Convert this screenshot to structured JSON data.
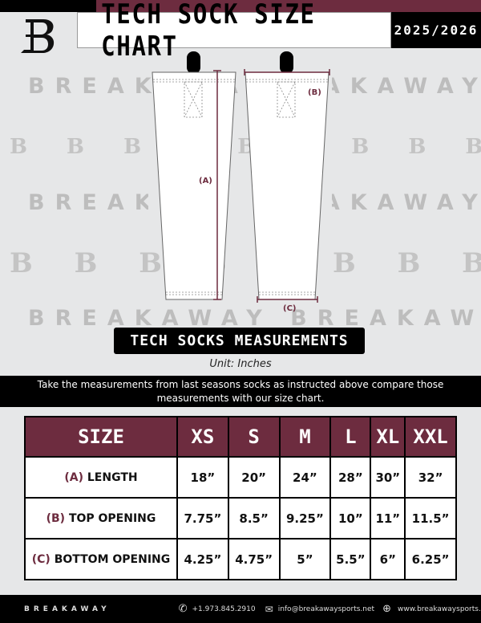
{
  "header": {
    "title": "TECH SOCK SIZE CHART",
    "season": "2025/2026",
    "brand_logo": "B"
  },
  "watermark": {
    "text": "BREAKAWAY",
    "logo": "B"
  },
  "diagram": {
    "label_a": "(A)",
    "label_b": "(B)",
    "label_c": "(C)"
  },
  "colors": {
    "maroon": "#6d2c3f",
    "black": "#000000",
    "background": "#e6e7e8"
  },
  "section_title": "TECH SOCKS MEASUREMENTS",
  "unit": "Unit: Inches",
  "instructions_line1": "Take the measurements from last seasons socks as instructed above compare those",
  "instructions_line2": "measurements  with our size chart.",
  "table": {
    "header": [
      "SIZE",
      "XS",
      "S",
      "M",
      "L",
      "XL",
      "XXL"
    ],
    "rows": [
      {
        "code": "(A)",
        "label": "LENGTH",
        "values": [
          "18”",
          "20”",
          "24”",
          "28”",
          "30”",
          "32”"
        ]
      },
      {
        "code": "(B)",
        "label": "TOP OPENING",
        "values": [
          "7.75”",
          "8.5”",
          "9.25”",
          "10”",
          "11”",
          "11.5”"
        ]
      },
      {
        "code": "(C)",
        "label": "BOTTOM OPENING",
        "values": [
          "4.25”",
          "4.75”",
          "5”",
          "5.5”",
          "6”",
          "6.25”"
        ]
      }
    ]
  },
  "footer": {
    "brand": "BREAKAWAY",
    "phone": "+1.973.845.2910",
    "email": "info@breakawaysports.net",
    "website": "www.breakawaysports.net",
    "phone_icon": "phone-icon",
    "email_icon": "envelope-icon",
    "web_icon": "globe-icon"
  }
}
